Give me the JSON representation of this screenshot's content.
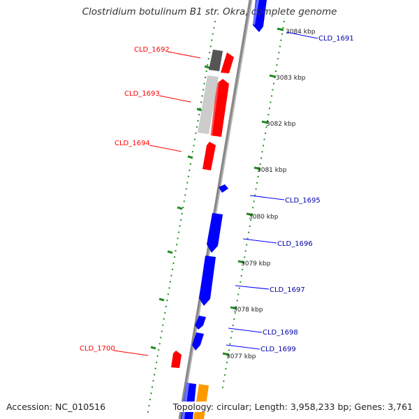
{
  "title": "Clostridium botulinum B1 str. Okra, complete genome",
  "footer": {
    "accession": "Accession: NC_010516",
    "summary": "Topology: circular; Length: 3,958,233 bp; Genes: 3,761"
  },
  "colors": {
    "forward_gene": "#0000ff",
    "reverse_gene": "#ff0000",
    "light_gray": "#cccccc",
    "dark_gray": "#555555",
    "orange": "#ff9900",
    "backbone": "#888888",
    "ticks": "#228b22"
  },
  "ticks": [
    "3084 kbp",
    "3083 kbp",
    "3082 kbp",
    "3081 kbp",
    "3080 kbp",
    "3079 kbp",
    "3078 kbp",
    "3077 kbp"
  ],
  "labels": {
    "left": [
      "CLD_1692",
      "CLD_1693",
      "CLD_1694",
      "CLD_1700"
    ],
    "right": [
      "CLD_1691",
      "CLD_1695",
      "CLD_1696",
      "CLD_1697",
      "CLD_1698",
      "CLD_1699"
    ]
  }
}
